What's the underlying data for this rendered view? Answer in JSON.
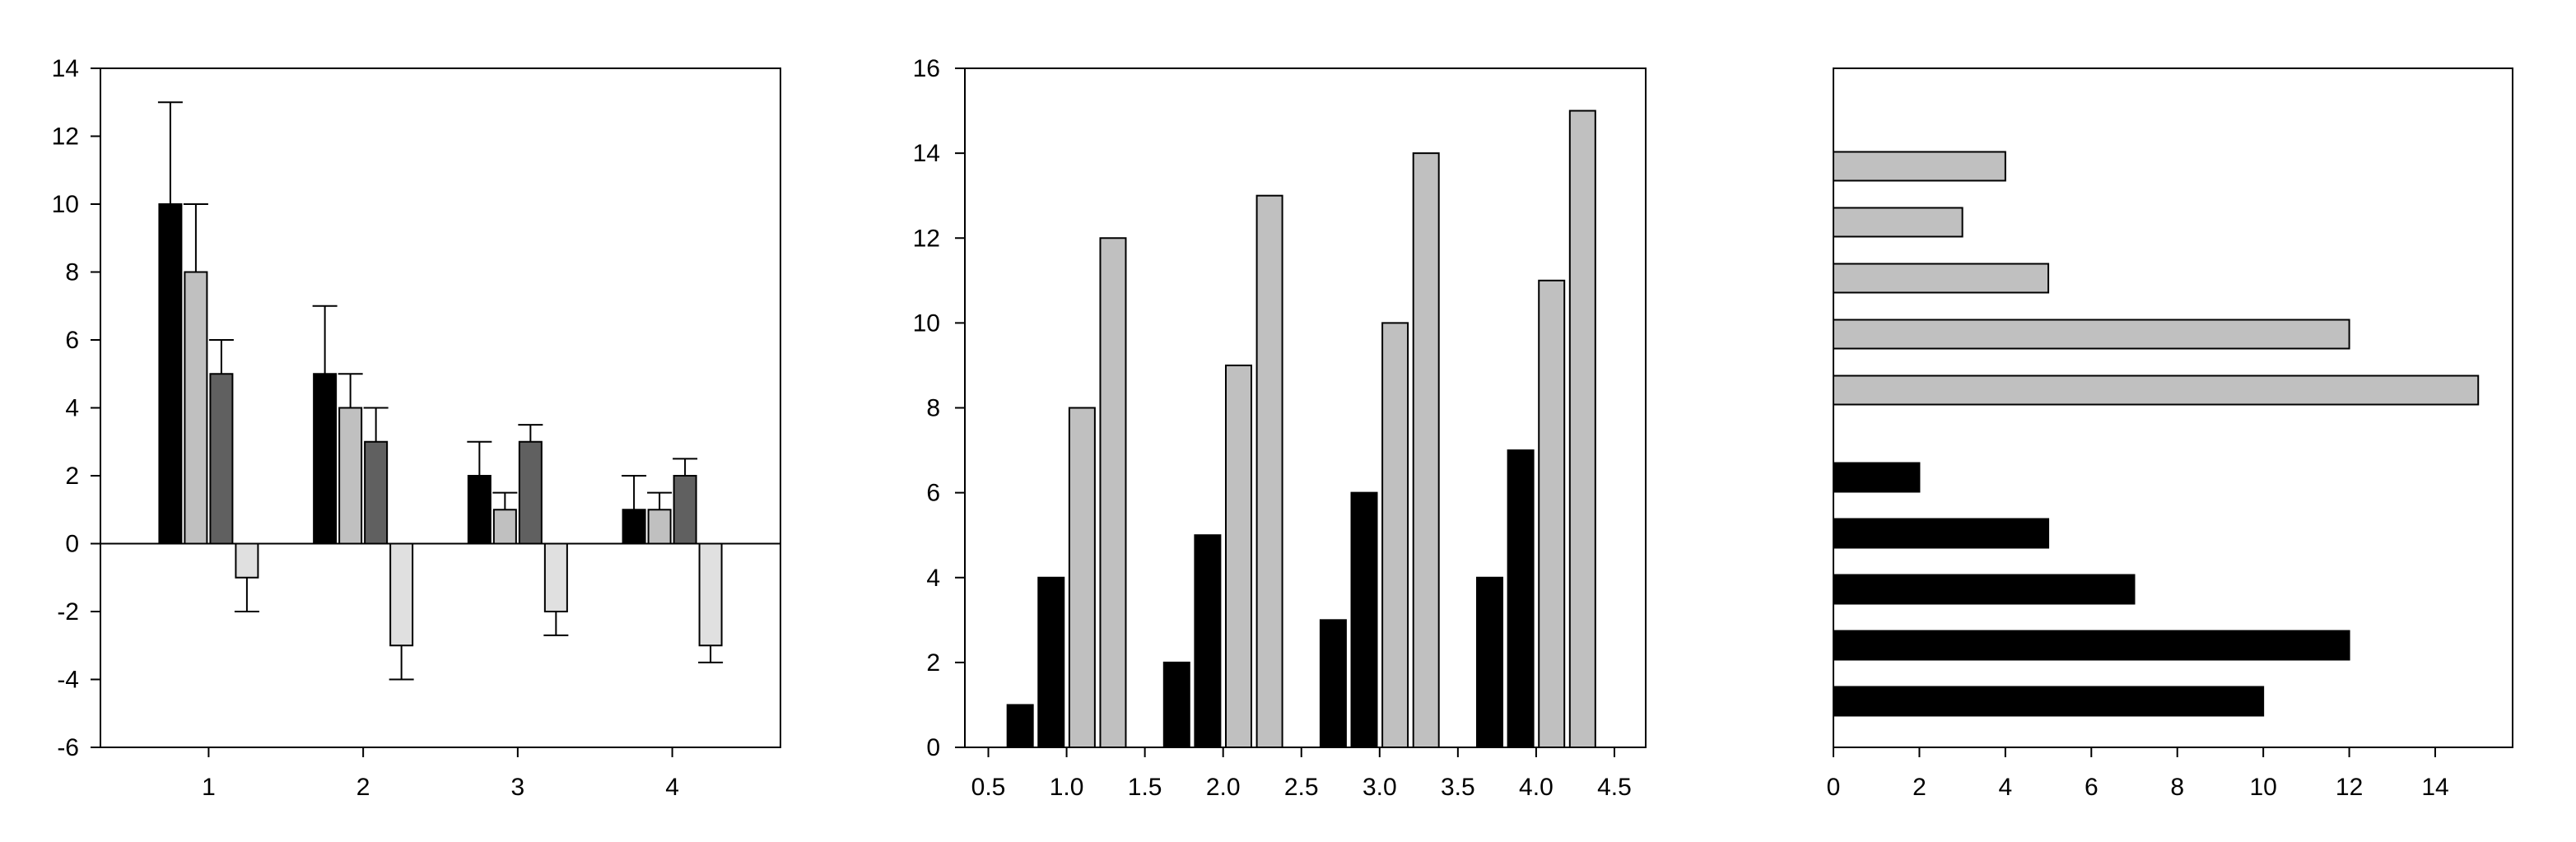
{
  "chart_data": [
    {
      "type": "bar",
      "x_ticks": [
        1,
        2,
        3,
        4
      ],
      "ylim": [
        -6,
        14
      ],
      "y_ticks": [
        -6,
        -4,
        -2,
        0,
        2,
        4,
        6,
        8,
        10,
        12,
        14
      ],
      "grid": false,
      "legend": "none",
      "series": [
        {
          "color": "#000000",
          "values": [
            10,
            5,
            2,
            1
          ],
          "error_upper": [
            13,
            7,
            3,
            2
          ]
        },
        {
          "color": "#c0c0c0",
          "values": [
            8,
            4,
            1,
            1
          ],
          "error_upper": [
            10,
            5,
            1.5,
            1.5
          ]
        },
        {
          "color": "#606060",
          "values": [
            5,
            3,
            3,
            2
          ],
          "error_upper": [
            6,
            4,
            3.5,
            2.5
          ]
        },
        {
          "color": "#e0e0e0",
          "values": [
            -1,
            -3,
            -2,
            -3
          ],
          "error_lower": [
            -2,
            -4,
            -2.7,
            -3.5
          ]
        }
      ]
    },
    {
      "type": "bar",
      "xlim": [
        0.35,
        4.7
      ],
      "ylim": [
        0,
        16
      ],
      "x_ticks": [
        "0.5",
        "1.0",
        "1.5",
        "2.0",
        "2.5",
        "3.0",
        "3.5",
        "4.0",
        "4.5"
      ],
      "y_ticks": [
        0,
        2,
        4,
        6,
        8,
        10,
        12,
        14,
        16
      ],
      "grid": false,
      "legend": "none",
      "groups": [
        1,
        2,
        3,
        4
      ],
      "series": [
        {
          "color": "#000000",
          "values": [
            1,
            2,
            3,
            4
          ]
        },
        {
          "color": "#000000",
          "values": [
            4,
            5,
            6,
            7
          ]
        },
        {
          "color": "#c0c0c0",
          "values": [
            8,
            9,
            10,
            11
          ]
        },
        {
          "color": "#c0c0c0",
          "values": [
            12,
            13,
            14,
            15
          ]
        }
      ]
    },
    {
      "type": "horizontal-bar",
      "xlim": [
        0,
        15.8
      ],
      "x_ticks": [
        0,
        2,
        4,
        6,
        8,
        10,
        12,
        14
      ],
      "grid": false,
      "legend": "none",
      "series": [
        {
          "color": "#c0c0c0",
          "values_top_to_bottom": [
            4,
            3,
            5,
            12,
            15
          ]
        },
        {
          "color": "#000000",
          "values_top_to_bottom": [
            2,
            5,
            7,
            12,
            10
          ]
        }
      ]
    }
  ]
}
